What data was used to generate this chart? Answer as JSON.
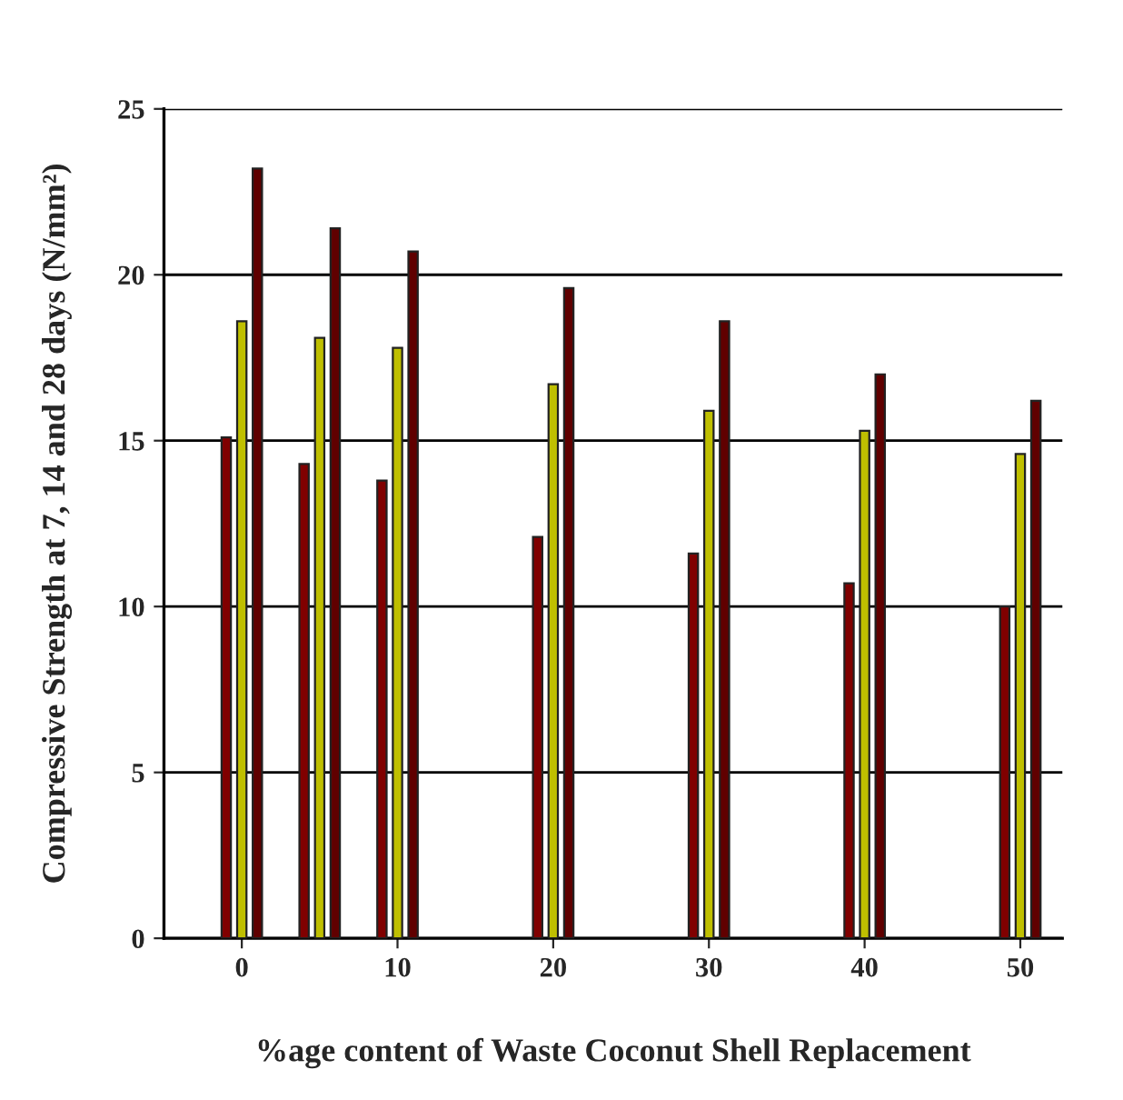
{
  "chart_data": {
    "type": "bar",
    "xlabel": "%age content of Waste Coconut Shell Replacement",
    "ylabel": "Compressive Strength at 7, 14 and 28 days (N/mm²)",
    "x": [
      0,
      5,
      10,
      20,
      30,
      40,
      50
    ],
    "series": [
      {
        "color": "#800000",
        "values": [
          15.1,
          14.3,
          13.8,
          12.1,
          11.6,
          10.7,
          10.0
        ]
      },
      {
        "color": "#bfbf00",
        "values": [
          18.6,
          18.1,
          17.8,
          16.7,
          15.9,
          15.3,
          14.6
        ]
      },
      {
        "color": "#600000",
        "values": [
          23.2,
          21.4,
          20.7,
          19.6,
          18.6,
          17.0,
          16.2
        ]
      }
    ],
    "xlim": [
      -5,
      52.7
    ],
    "xticks": [
      0,
      10,
      20,
      30,
      40,
      50
    ],
    "ylim": [
      0,
      25
    ],
    "yticks": [
      0,
      5,
      10,
      15,
      20,
      25
    ],
    "grid": "y"
  }
}
